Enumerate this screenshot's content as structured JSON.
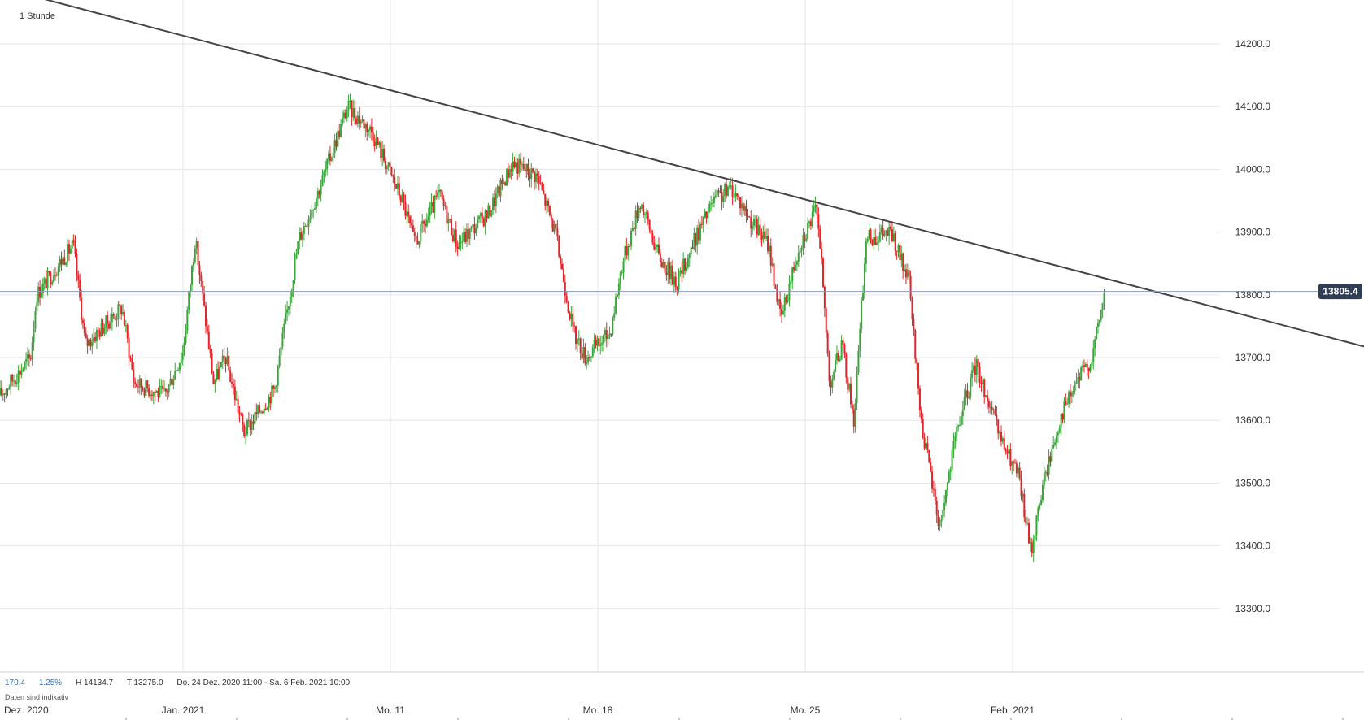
{
  "period_label": "1 Stunde",
  "stats": {
    "change": "170.4",
    "change_pct": "1.25%",
    "high": "H 14134.7",
    "low": "T 13275.0",
    "range": "Do. 24 Dez. 2020 11:00 - Sa. 6 Feb. 2021 10:00"
  },
  "note": "Daten sind indikativ",
  "colors": {
    "up": "#3aa53a",
    "down": "#e0262b",
    "grid": "#e6e6e6",
    "trendline": "#444444",
    "price_tag": "#2f3e55",
    "price_line": "#8e9bb8"
  },
  "chart_data": {
    "type": "candlestick",
    "ylim": [
      13200,
      14270
    ],
    "y_ticks": [
      13300,
      13400,
      13500,
      13600,
      13700,
      13800,
      13900,
      14000,
      14100,
      14200
    ],
    "y_tick_labels": [
      "13300.0",
      "13400.0",
      "13500.0",
      "13600.0",
      "13700.0",
      "13800.0",
      "13900.0",
      "14000.0",
      "14100.0",
      "14200.0"
    ],
    "x_labels": [
      "Dez. 2020",
      "Jan. 2021",
      "Mo. 11",
      "Mo. 18",
      "Mo. 25",
      "Feb. 2021"
    ],
    "x_label_pos": [
      0,
      0.15,
      0.32,
      0.49,
      0.66,
      0.83
    ],
    "current_price": 13805.4,
    "current_price_label": "13805.4",
    "trendline": [
      {
        "x": 0,
        "y": 14290
      },
      {
        "x": 1,
        "y": 13778
      }
    ],
    "waypoints": [
      [
        0.0,
        13640
      ],
      [
        0.025,
        13700
      ],
      [
        0.03,
        13800
      ],
      [
        0.06,
        13880
      ],
      [
        0.07,
        13720
      ],
      [
        0.09,
        13760
      ],
      [
        0.1,
        13780
      ],
      [
        0.11,
        13660
      ],
      [
        0.135,
        13640
      ],
      [
        0.15,
        13710
      ],
      [
        0.16,
        13890
      ],
      [
        0.175,
        13660
      ],
      [
        0.185,
        13700
      ],
      [
        0.2,
        13580
      ],
      [
        0.225,
        13650
      ],
      [
        0.245,
        13890
      ],
      [
        0.26,
        13960
      ],
      [
        0.285,
        14100
      ],
      [
        0.305,
        14060
      ],
      [
        0.33,
        13950
      ],
      [
        0.34,
        13880
      ],
      [
        0.36,
        13960
      ],
      [
        0.375,
        13880
      ],
      [
        0.4,
        13930
      ],
      [
        0.42,
        14010
      ],
      [
        0.44,
        13990
      ],
      [
        0.455,
        13900
      ],
      [
        0.47,
        13740
      ],
      [
        0.48,
        13700
      ],
      [
        0.5,
        13740
      ],
      [
        0.51,
        13850
      ],
      [
        0.525,
        13950
      ],
      [
        0.54,
        13860
      ],
      [
        0.555,
        13820
      ],
      [
        0.57,
        13890
      ],
      [
        0.585,
        13950
      ],
      [
        0.6,
        13970
      ],
      [
        0.615,
        13920
      ],
      [
        0.63,
        13880
      ],
      [
        0.64,
        13760
      ],
      [
        0.655,
        13880
      ],
      [
        0.67,
        13940
      ],
      [
        0.68,
        13660
      ],
      [
        0.69,
        13720
      ],
      [
        0.7,
        13600
      ],
      [
        0.71,
        13890
      ],
      [
        0.73,
        13900
      ],
      [
        0.745,
        13820
      ],
      [
        0.755,
        13600
      ],
      [
        0.77,
        13430
      ],
      [
        0.785,
        13590
      ],
      [
        0.8,
        13690
      ],
      [
        0.82,
        13570
      ],
      [
        0.835,
        13510
      ],
      [
        0.845,
        13390
      ],
      [
        0.855,
        13500
      ],
      [
        0.87,
        13610
      ],
      [
        0.885,
        13670
      ],
      [
        0.895,
        13700
      ],
      [
        0.905,
        13800
      ]
    ]
  }
}
